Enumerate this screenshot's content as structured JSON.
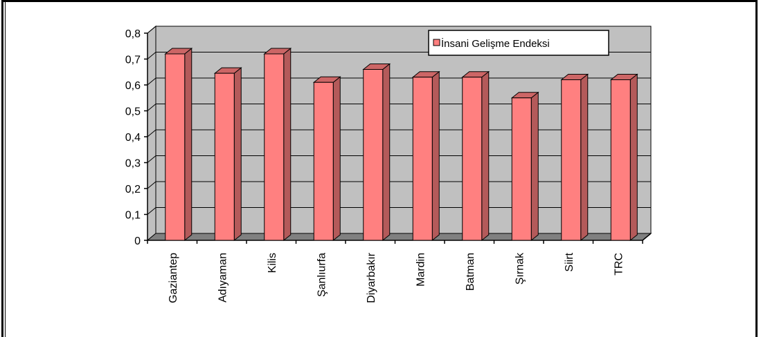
{
  "chart_data": {
    "type": "bar",
    "categories": [
      "Gaziantep",
      "Adıyaman",
      "Kilis",
      "Şanlıurfa",
      "Diyarbakır",
      "Mardin",
      "Batman",
      "Şırnak",
      "Siirt",
      "TRC"
    ],
    "series": [
      {
        "name": "İnsani Gelişme Endeksi",
        "values": [
          0.72,
          0.645,
          0.72,
          0.61,
          0.66,
          0.63,
          0.63,
          0.55,
          0.62,
          0.62
        ]
      }
    ],
    "ylim": [
      0,
      0.8
    ],
    "yticks": [
      "0",
      "0,1",
      "0,2",
      "0,3",
      "0,4",
      "0,5",
      "0,6",
      "0,7",
      "0,8"
    ],
    "grid": true,
    "legend_position": "top-right",
    "colors": {
      "bar_front": "#FF8080",
      "bar_side": "#B45A5A",
      "bar_top": "#CC6666",
      "plot_wall": "#C0C0C0",
      "plot_floor": "#808080"
    }
  }
}
